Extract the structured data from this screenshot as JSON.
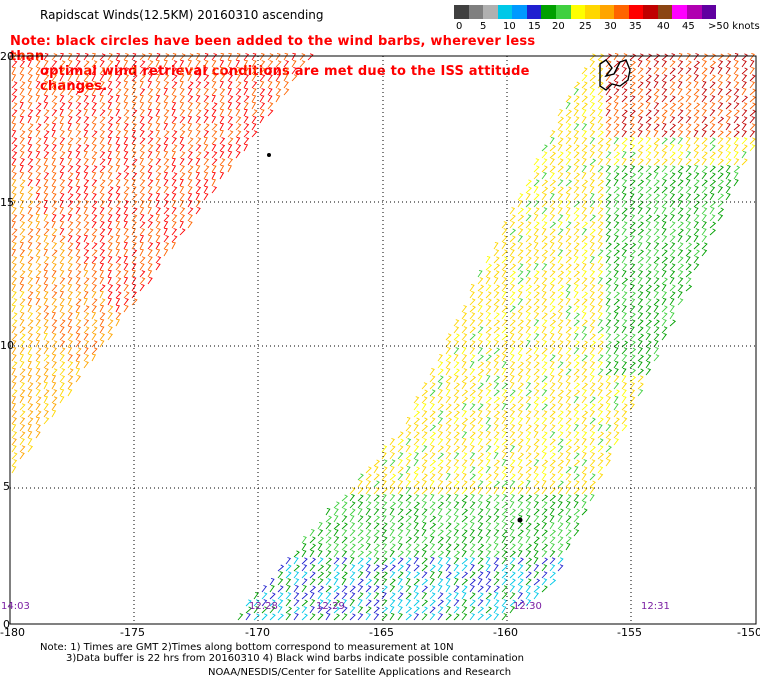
{
  "title": "Rapidscat Winds(12.5KM) 20160310 ascending",
  "note": {
    "line1": "Note: black circles have been added to the wind barbs, wherever less than",
    "line2": "optimal wind retrieval conditions are met due to the ISS attitude changes."
  },
  "colorbar": {
    "labels": [
      "0",
      "5",
      "10",
      "15",
      "20",
      "25",
      "30",
      "35",
      "40",
      "45",
      ">50 knots"
    ],
    "colors": [
      "#404040",
      "#7f7f7f",
      "#b0b0b0",
      "#00c8e8",
      "#0099ff",
      "#2020d0",
      "#00a000",
      "#40d040",
      "#ffff00",
      "#ffd700",
      "#ffa500",
      "#ff6400",
      "#ff0000",
      "#c00000",
      "#8b4513",
      "#ff00ff",
      "#b000b0",
      "#6000a0"
    ]
  },
  "map": {
    "x_ticks": [
      "-180",
      "-175",
      "-170",
      "-165",
      "-160",
      "-155",
      "-150"
    ],
    "y_ticks": [
      "0",
      "5",
      "10",
      "15",
      "20"
    ],
    "time_labels": [
      "14:03",
      "12:28",
      "12:29",
      "12:30",
      "12:31"
    ]
  },
  "footer": {
    "line1": "Note: 1) Times are GMT 2)Times along bottom correspond to measurement at 10N",
    "line2": "3)Data buffer is 22 hrs from 20160310 4) Black wind barbs indicate possible contamination",
    "line3": "NOAA/NESDIS/Center for Satellite Applications and Research"
  }
}
